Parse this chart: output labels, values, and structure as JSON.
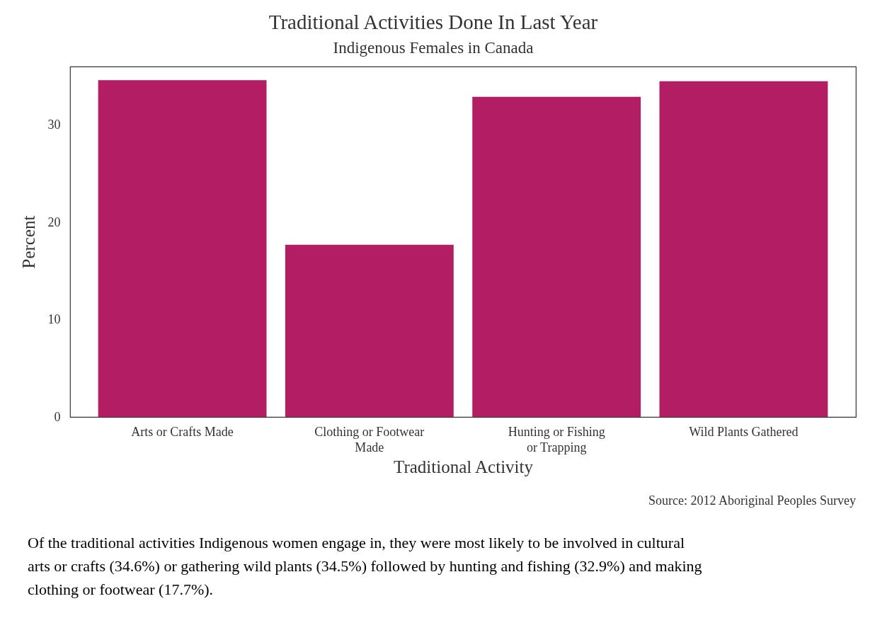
{
  "chart_data": {
    "type": "bar",
    "title": "Traditional Activities Done In Last Year",
    "subtitle": "Indigenous Females in Canada",
    "xlabel": "Traditional Activity",
    "ylabel": "Percent",
    "categories": [
      "Arts or Crafts Made",
      "Clothing or Footwear Made",
      "Hunting or Fishing or Trapping",
      "Wild Plants Gathered"
    ],
    "values": [
      34.6,
      17.7,
      32.9,
      34.5
    ],
    "color": "#b21d63",
    "ylim": [
      0,
      36
    ],
    "yticks": [
      0,
      10,
      20,
      30
    ],
    "grid": false,
    "annotations": [
      "Source: 2012 Aboriginal Peoples Survey",
      "Of the traditional activities Indigenous women engage in, they were most likely to be involved in cultural arts or crafts (34.6%) or gathering wild plants (34.5%) followed by hunting and fishing (32.9%) and making clothing or footwear (17.7%)."
    ]
  }
}
